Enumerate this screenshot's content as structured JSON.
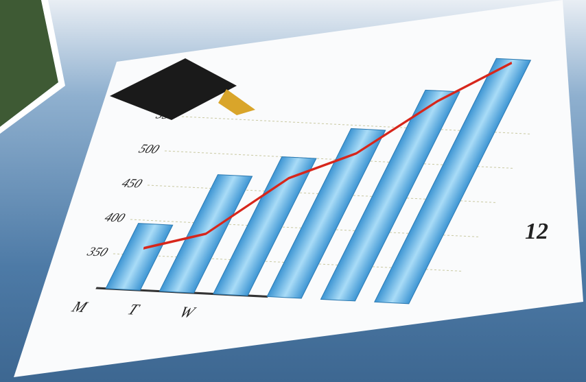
{
  "chart_data": {
    "type": "bar",
    "categories": [
      "M",
      "T",
      "W",
      null,
      null,
      null
    ],
    "series": [
      {
        "type": "bar",
        "color": "#5fb3e6",
        "values": [
          395,
          470,
          500,
          545,
          605,
          655
        ]
      },
      {
        "type": "line",
        "color": "#d7261b",
        "values": [
          360,
          385,
          470,
          510,
          590,
          650
        ]
      }
    ],
    "ylim": [
      300,
      660
    ],
    "yticks": [
      350,
      400,
      450,
      500,
      550
    ],
    "grid": true,
    "annotation": "12"
  }
}
